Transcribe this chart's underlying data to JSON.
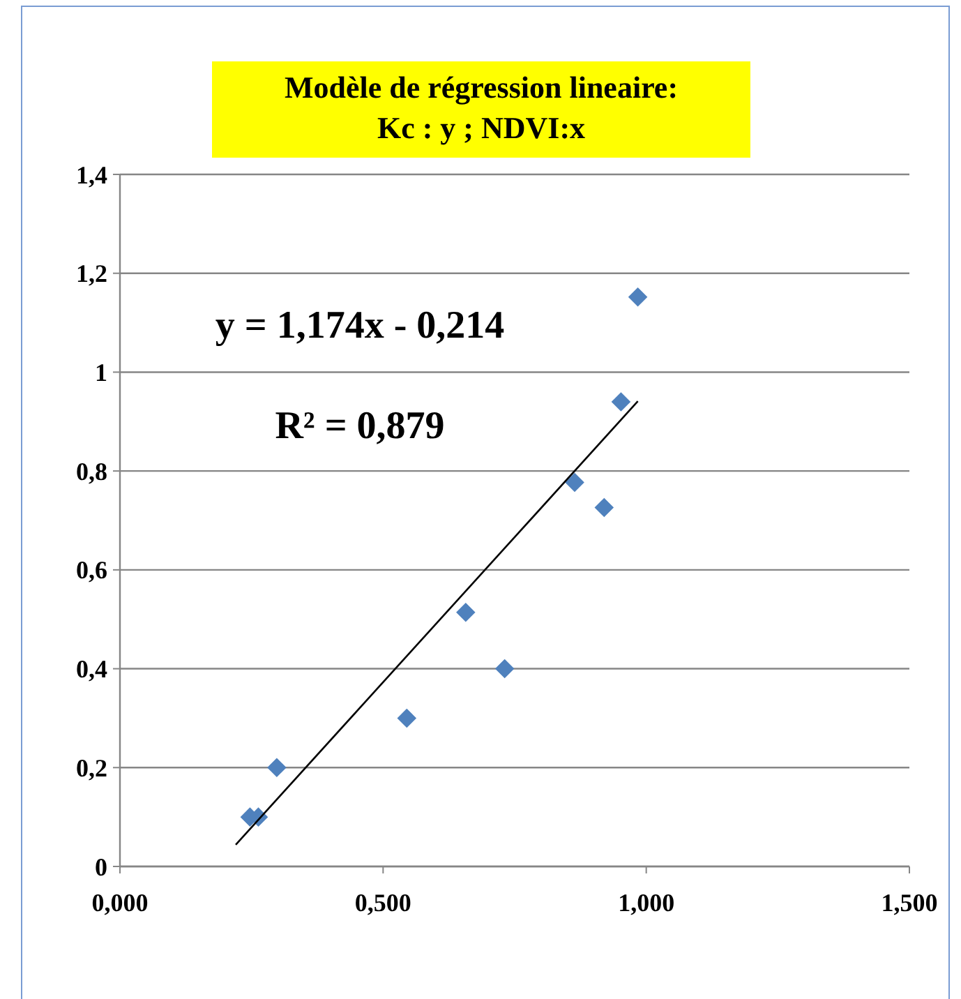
{
  "chart_data": {
    "type": "scatter",
    "title": "Modèle de régression lineaire:\nKc : y ; NDVI:x",
    "x": [
      0.247,
      0.263,
      0.298,
      0.545,
      0.657,
      0.731,
      0.864,
      0.92,
      0.952,
      0.984
    ],
    "series": [
      {
        "color": "#4f81bd",
        "marker": "diamond",
        "values": [
          0.1,
          0.1,
          0.2,
          0.3,
          0.514,
          0.4,
          0.777,
          0.726,
          0.94,
          1.152
        ]
      },
      {
        "type": "line",
        "color": "#000000",
        "line_style": "solid",
        "x": [
          0.22,
          0.984
        ],
        "values": [
          0.044,
          0.941
        ]
      }
    ],
    "xlim": [
      0,
      1.5
    ],
    "xticks": [
      {
        "value": 0,
        "label": "0,000"
      },
      {
        "value": 0.5,
        "label": "0,500"
      },
      {
        "value": 1,
        "label": "1,000"
      },
      {
        "value": 1.5,
        "label": "1,500"
      }
    ],
    "ylim": [
      0,
      1.4
    ],
    "yticks": [
      0,
      {
        "value": 0.2,
        "label": "0,2"
      },
      {
        "value": 0.4,
        "label": "0,4"
      },
      {
        "value": 0.6,
        "label": "0,6"
      },
      {
        "value": 0.8,
        "label": "0,8"
      },
      1,
      {
        "value": 1.2,
        "label": "1,2"
      },
      {
        "value": 1.4,
        "label": "1,4"
      }
    ],
    "grid": "y",
    "annotations": [
      "y = 1,174x - 0,214",
      "R² = 0,879"
    ]
  }
}
